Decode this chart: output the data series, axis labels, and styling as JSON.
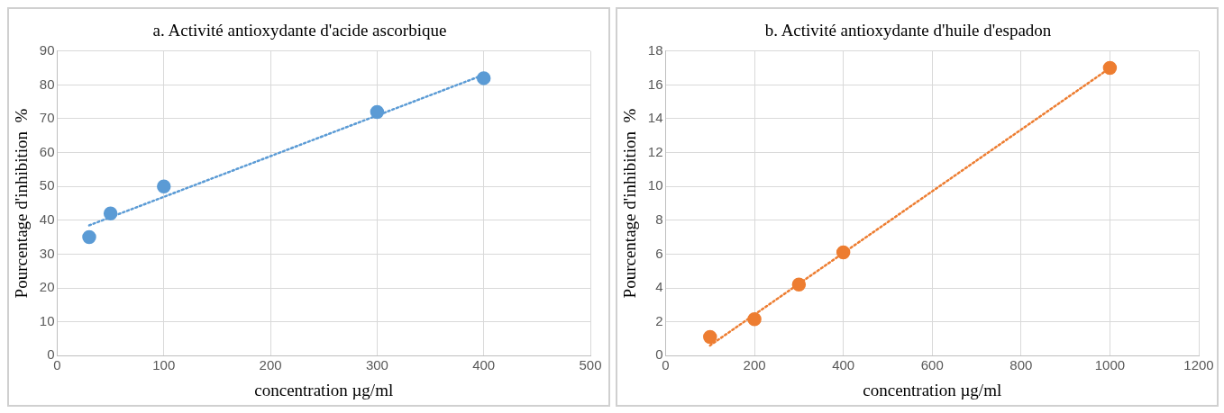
{
  "chart_data": [
    {
      "type": "scatter",
      "title": "a. Activité antioxydante d'acide ascorbique",
      "xlabel": "concentration µg/ml",
      "ylabel": "Pourcentage d'inhibition  %",
      "xlim": [
        0,
        500
      ],
      "xticks": [
        0,
        100,
        200,
        300,
        400,
        500
      ],
      "ylim": [
        0,
        90
      ],
      "yticks": [
        0,
        10,
        20,
        30,
        40,
        50,
        60,
        70,
        80,
        90
      ],
      "grid": true,
      "series": [
        {
          "color": "#5b9bd5",
          "marker": "circle",
          "x": [
            30,
            50,
            100,
            300,
            400
          ],
          "values": [
            35,
            42,
            50,
            72,
            82
          ]
        },
        {
          "type": "line",
          "color": "#5b9bd5",
          "line_style": "dotted",
          "marker": "none",
          "x": [
            30,
            400
          ],
          "values": [
            38.5,
            83
          ]
        }
      ]
    },
    {
      "type": "scatter",
      "title": "b. Activité antioxydante d'huile d'espadon",
      "xlabel": "concentration µg/ml",
      "ylabel": "Pourcentage d'inhibition  %",
      "xlim": [
        0,
        1200
      ],
      "xticks": [
        0,
        200,
        400,
        600,
        800,
        1000,
        1200
      ],
      "ylim": [
        0,
        18
      ],
      "yticks": [
        0,
        2,
        4,
        6,
        8,
        10,
        12,
        14,
        16,
        18
      ],
      "grid": true,
      "series": [
        {
          "color": "#ed7d31",
          "marker": "circle",
          "x": [
            100,
            200,
            300,
            400,
            1000
          ],
          "values": [
            1.1,
            2.15,
            4.2,
            6.1,
            17
          ]
        },
        {
          "type": "line",
          "color": "#ed7d31",
          "line_style": "dotted",
          "marker": "none",
          "x": [
            100,
            1000
          ],
          "values": [
            0.6,
            17
          ]
        }
      ]
    }
  ]
}
